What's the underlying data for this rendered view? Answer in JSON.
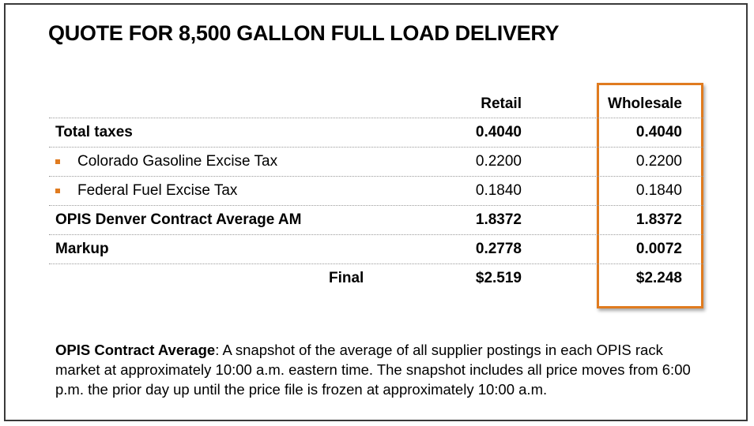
{
  "title": "QUOTE FOR 8,500 GALLON FULL LOAD DELIVERY",
  "columns": {
    "retail": "Retail",
    "wholesale": "Wholesale"
  },
  "rows": [
    {
      "label": "Total taxes",
      "retail": "0.4040",
      "wholesale": "0.4040"
    },
    {
      "label": "Colorado Gasoline Excise Tax",
      "retail": "0.2200",
      "wholesale": "0.2200"
    },
    {
      "label": "Federal Fuel Excise Tax",
      "retail": "0.1840",
      "wholesale": "0.1840"
    },
    {
      "label": "OPIS Denver Contract Average AM",
      "retail": "1.8372",
      "wholesale": "1.8372"
    },
    {
      "label": "Markup",
      "retail": "0.2778",
      "wholesale": "0.0072"
    },
    {
      "label": "Final",
      "retail": "$2.519",
      "wholesale": "$2.248"
    }
  ],
  "note": {
    "term": "OPIS Contract Average",
    "text": ": A snapshot of the average of all supplier postings in each OPIS rack market at approximately 10:00 a.m. eastern time. The snapshot includes all price moves from 6:00 p.m. the prior day up until the price file is frozen at approximately 10:00 a.m."
  },
  "colors": {
    "accent": "#e07b1f",
    "border": "#3a3a3a"
  }
}
